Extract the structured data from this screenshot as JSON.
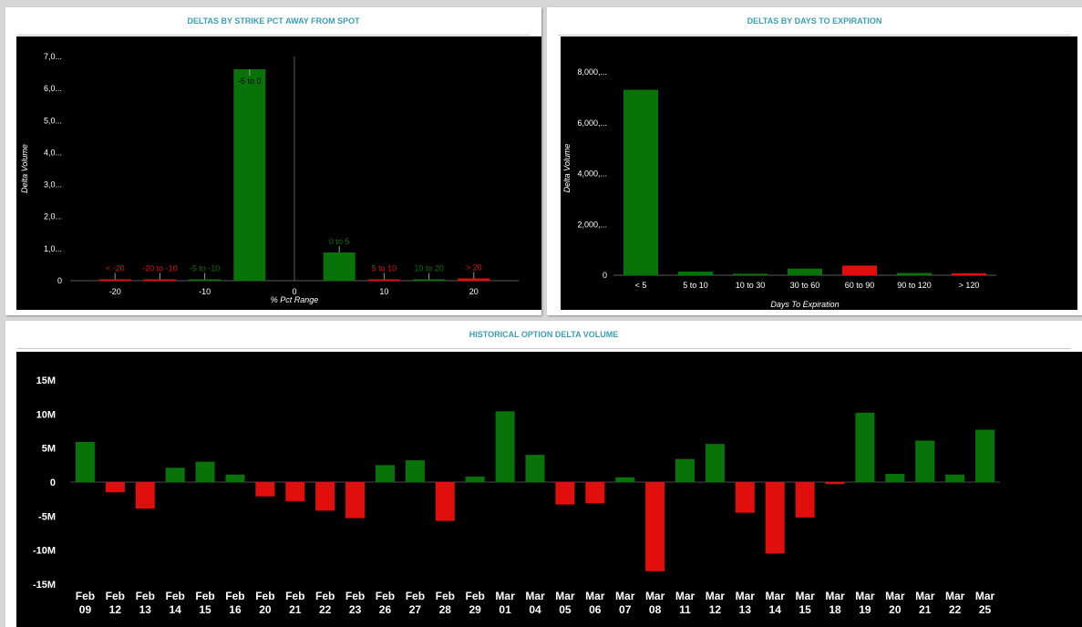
{
  "panels": {
    "strike": {
      "title": "DELTAS BY STRIKE PCT AWAY FROM SPOT"
    },
    "dte": {
      "title": "DELTAS BY DAYS TO EXPIRATION"
    },
    "hist": {
      "title": "HISTORICAL OPTION DELTA VOLUME"
    }
  },
  "colors": {
    "positive": "#087308",
    "negative": "#e10e0e",
    "background": "#000000",
    "title": "#3aa0b5"
  },
  "chart_data": [
    {
      "id": "strike",
      "type": "bar",
      "title": "DELTAS BY STRIKE PCT AWAY FROM SPOT",
      "xlabel": "% Pct Range",
      "ylabel": "Delta Volume",
      "x_ticks": [
        "-20",
        "-10",
        "0",
        "10",
        "20"
      ],
      "y_ticks": [
        "0",
        "1,0...",
        "2,0...",
        "3,0...",
        "4,0...",
        "5,0...",
        "6,0...",
        "7,0..."
      ],
      "ylim": [
        0,
        7000
      ],
      "xlim": [
        -25,
        25
      ],
      "zero_line_x": 0,
      "bars": [
        {
          "label": "< -20",
          "x": -20,
          "value": 15,
          "sign": "negative"
        },
        {
          "label": "-20 to -10",
          "x": -15,
          "value": 10,
          "sign": "negative"
        },
        {
          "label": "-5 to -10",
          "x": -10,
          "value": 40,
          "sign": "positive"
        },
        {
          "label": "-5 to 0",
          "x": -5,
          "value": 6600,
          "sign": "positive"
        },
        {
          "label": "0 to 5",
          "x": 5,
          "value": 880,
          "sign": "positive"
        },
        {
          "label": "5 to 10",
          "x": 10,
          "value": 15,
          "sign": "negative"
        },
        {
          "label": "10 to 20",
          "x": 15,
          "value": 10,
          "sign": "positive"
        },
        {
          "label": "> 20",
          "x": 20,
          "value": 70,
          "sign": "negative"
        }
      ]
    },
    {
      "id": "dte",
      "type": "bar",
      "title": "DELTAS BY DAYS TO EXPIRATION",
      "xlabel": "Days To Expiration",
      "ylabel": "Delta Volume",
      "categories": [
        "< 5",
        "5 to 10",
        "10 to 30",
        "30 to 60",
        "60 to 90",
        "90 to 120",
        "> 120"
      ],
      "values": [
        7300,
        140,
        60,
        260,
        380,
        90,
        80
      ],
      "signs": [
        "positive",
        "positive",
        "positive",
        "positive",
        "negative",
        "positive",
        "negative"
      ],
      "y_ticks": [
        "0",
        "2,000,...",
        "4,000,...",
        "6,000,...",
        "8,000,..."
      ],
      "ylim": [
        0,
        8000
      ]
    },
    {
      "id": "hist",
      "type": "bar",
      "title": "HISTORICAL OPTION DELTA VOLUME",
      "categories": [
        {
          "month": "Feb",
          "day": "09"
        },
        {
          "month": "Feb",
          "day": "12"
        },
        {
          "month": "Feb",
          "day": "13"
        },
        {
          "month": "Feb",
          "day": "14"
        },
        {
          "month": "Feb",
          "day": "15"
        },
        {
          "month": "Feb",
          "day": "16"
        },
        {
          "month": "Feb",
          "day": "20"
        },
        {
          "month": "Feb",
          "day": "21"
        },
        {
          "month": "Feb",
          "day": "22"
        },
        {
          "month": "Feb",
          "day": "23"
        },
        {
          "month": "Feb",
          "day": "26"
        },
        {
          "month": "Feb",
          "day": "27"
        },
        {
          "month": "Feb",
          "day": "28"
        },
        {
          "month": "Feb",
          "day": "29"
        },
        {
          "month": "Mar",
          "day": "01"
        },
        {
          "month": "Mar",
          "day": "04"
        },
        {
          "month": "Mar",
          "day": "05"
        },
        {
          "month": "Mar",
          "day": "06"
        },
        {
          "month": "Mar",
          "day": "07"
        },
        {
          "month": "Mar",
          "day": "08"
        },
        {
          "month": "Mar",
          "day": "11"
        },
        {
          "month": "Mar",
          "day": "12"
        },
        {
          "month": "Mar",
          "day": "13"
        },
        {
          "month": "Mar",
          "day": "14"
        },
        {
          "month": "Mar",
          "day": "15"
        },
        {
          "month": "Mar",
          "day": "18"
        },
        {
          "month": "Mar",
          "day": "19"
        },
        {
          "month": "Mar",
          "day": "20"
        },
        {
          "month": "Mar",
          "day": "21"
        },
        {
          "month": "Mar",
          "day": "22"
        },
        {
          "month": "Mar",
          "day": "25"
        }
      ],
      "values": [
        5.9,
        -1.5,
        -3.9,
        2.1,
        3.0,
        1.1,
        -2.1,
        -2.8,
        -4.2,
        -5.3,
        2.5,
        3.2,
        -5.7,
        0.8,
        10.4,
        4.0,
        -3.3,
        -3.1,
        0.7,
        -13.1,
        3.4,
        5.6,
        -4.5,
        -10.5,
        -5.2,
        -0.3,
        10.2,
        1.2,
        6.1,
        1.1,
        7.7
      ],
      "unit": "M",
      "y_ticks": [
        "-15M",
        "-10M",
        "-5M",
        "0",
        "5M",
        "10M",
        "15M"
      ],
      "ylim": [
        -15,
        15
      ]
    }
  ]
}
